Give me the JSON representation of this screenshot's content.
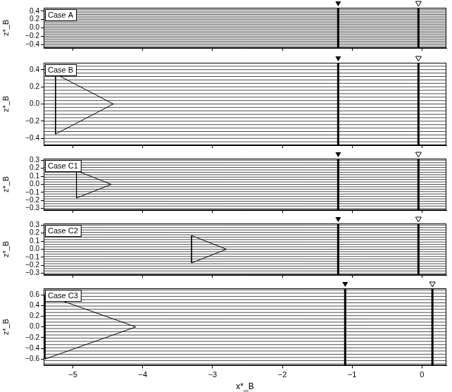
{
  "chart_data": [
    {
      "type": "scatter",
      "title": "Case A",
      "xlim": [
        -5.42,
        0.35
      ],
      "ylim": [
        -0.48,
        0.48
      ],
      "xticks": [
        {
          "value": -5,
          "label": "−5"
        },
        {
          "value": -4,
          "label": "−4"
        },
        {
          "value": -3,
          "label": "−3"
        },
        {
          "value": -2,
          "label": "−2"
        },
        {
          "value": -1,
          "label": "−1"
        },
        0
      ],
      "yticks": [
        {
          "value": -0.4,
          "label": "−0.4"
        },
        {
          "value": -0.2,
          "label": "−0.2"
        },
        {
          "value": 0,
          "label": "0.0"
        },
        {
          "value": 0.2,
          "label": "0.2"
        },
        {
          "value": 0.4,
          "label": "0.4"
        }
      ],
      "ylabel": "z*_B",
      "tick_labels": "y",
      "streamlines_z": [
        -0.44,
        -0.4,
        -0.36,
        -0.32,
        -0.28,
        -0.24,
        -0.2,
        -0.16,
        -0.12,
        -0.08,
        -0.04,
        0,
        0.04,
        0.08,
        0.12,
        0.16,
        0.2,
        0.24,
        0.28,
        0.32,
        0.36,
        0.4,
        0.44
      ],
      "shocks": [
        -1.2,
        -0.05
      ]
    },
    {
      "type": "scatter",
      "title": "Case B",
      "xlim": [
        -5.42,
        0.35
      ],
      "ylim": [
        -0.48,
        0.48
      ],
      "xticks": [
        {
          "value": -5,
          "label": "−5"
        },
        {
          "value": -4,
          "label": "−4"
        },
        {
          "value": -3,
          "label": "−3"
        },
        {
          "value": -2,
          "label": "−2"
        },
        {
          "value": -1,
          "label": "−1"
        },
        0
      ],
      "yticks": [
        {
          "value": -0.4,
          "label": "−0.4"
        },
        {
          "value": -0.2,
          "label": "−0.2"
        },
        {
          "value": 0,
          "label": "0.0"
        },
        {
          "value": 0.2,
          "label": "0.2"
        },
        {
          "value": 0.4,
          "label": "0.4"
        }
      ],
      "ylabel": "z*_B",
      "tick_labels": "y",
      "streamlines_z": [
        -0.44,
        -0.4,
        -0.36,
        -0.32,
        -0.28,
        -0.24,
        -0.2,
        -0.16,
        -0.12,
        -0.08,
        -0.04,
        0,
        0.04,
        0.08,
        0.12,
        0.16,
        0.2,
        0.24,
        0.28,
        0.32,
        0.36,
        0.4,
        0.44
      ],
      "triangle": [
        [
          -5.25,
          -0.35
        ],
        [
          -4.42,
          0
        ],
        [
          -5.25,
          0.35
        ]
      ],
      "shocks": [
        -1.2,
        -0.05
      ]
    },
    {
      "type": "scatter",
      "title": "Case C1",
      "xlim": [
        -5.42,
        0.35
      ],
      "ylim": [
        -0.32,
        0.32
      ],
      "xticks": [
        {
          "value": -5,
          "label": "−5"
        },
        {
          "value": -4,
          "label": "−4"
        },
        {
          "value": -3,
          "label": "−3"
        },
        {
          "value": -2,
          "label": "−2"
        },
        {
          "value": -1,
          "label": "−1"
        },
        0
      ],
      "yticks": [
        {
          "value": -0.3,
          "label": "−0.3"
        },
        {
          "value": -0.2,
          "label": "−0.2"
        },
        {
          "value": -0.1,
          "label": "−0.1"
        },
        {
          "value": 0,
          "label": "0.0"
        },
        {
          "value": 0.1,
          "label": "0.1"
        },
        {
          "value": 0.2,
          "label": "0.2"
        },
        {
          "value": 0.3,
          "label": "0.3"
        }
      ],
      "ylabel": "z*_B",
      "tick_labels": "y",
      "streamlines_z": [
        -0.3,
        -0.27,
        -0.24,
        -0.21,
        -0.18,
        -0.15,
        -0.12,
        -0.09,
        -0.06,
        -0.03,
        0,
        0.03,
        0.06,
        0.09,
        0.12,
        0.15,
        0.18,
        0.21,
        0.24,
        0.27,
        0.3
      ],
      "triangle": [
        [
          -4.95,
          -0.17
        ],
        [
          -4.45,
          0
        ],
        [
          -4.95,
          0.17
        ]
      ],
      "shocks": [
        -1.2,
        -0.05
      ]
    },
    {
      "type": "scatter",
      "title": "Case C2",
      "xlim": [
        -5.42,
        0.35
      ],
      "ylim": [
        -0.32,
        0.32
      ],
      "xticks": [
        {
          "value": -5,
          "label": "−5"
        },
        {
          "value": -4,
          "label": "−4"
        },
        {
          "value": -3,
          "label": "−3"
        },
        {
          "value": -2,
          "label": "−2"
        },
        {
          "value": -1,
          "label": "−1"
        },
        0
      ],
      "yticks": [
        {
          "value": -0.3,
          "label": "−0.3"
        },
        {
          "value": -0.2,
          "label": "−0.2"
        },
        {
          "value": -0.1,
          "label": "−0.1"
        },
        {
          "value": 0,
          "label": "0.0"
        },
        {
          "value": 0.1,
          "label": "0.1"
        },
        {
          "value": 0.2,
          "label": "0.2"
        },
        {
          "value": 0.3,
          "label": "0.3"
        }
      ],
      "ylabel": "z*_B",
      "tick_labels": "y",
      "streamlines_z": [
        -0.3,
        -0.27,
        -0.24,
        -0.21,
        -0.18,
        -0.15,
        -0.12,
        -0.09,
        -0.06,
        -0.03,
        0,
        0.03,
        0.06,
        0.09,
        0.12,
        0.15,
        0.18,
        0.21,
        0.24,
        0.27,
        0.3
      ],
      "triangle": [
        [
          -3.3,
          -0.17
        ],
        [
          -2.8,
          0
        ],
        [
          -3.3,
          0.17
        ]
      ],
      "shocks": [
        -1.2,
        -0.05
      ]
    },
    {
      "type": "scatter",
      "title": "Case C3",
      "xlim": [
        -5.42,
        0.35
      ],
      "ylim": [
        -0.72,
        0.72
      ],
      "xticks": [
        {
          "value": -5,
          "label": "−5"
        },
        {
          "value": -4,
          "label": "−4"
        },
        {
          "value": -3,
          "label": "−3"
        },
        {
          "value": -2,
          "label": "−2"
        },
        {
          "value": -1,
          "label": "−1"
        },
        0
      ],
      "yticks": [
        {
          "value": -0.6,
          "label": "−0.6"
        },
        {
          "value": -0.4,
          "label": "−0.4"
        },
        {
          "value": -0.2,
          "label": "−0.2"
        },
        {
          "value": 0,
          "label": "0.0"
        },
        {
          "value": 0.2,
          "label": "0.2"
        },
        {
          "value": 0.4,
          "label": "0.4"
        },
        {
          "value": 0.6,
          "label": "0.6"
        }
      ],
      "xlabel": "x*_B",
      "ylabel": "z*_B",
      "streamlines_z": [
        -0.69,
        -0.63,
        -0.57,
        -0.51,
        -0.45,
        -0.39,
        -0.33,
        -0.27,
        -0.21,
        -0.15,
        -0.09,
        -0.03,
        0.03,
        0.09,
        0.15,
        0.21,
        0.27,
        0.33,
        0.39,
        0.45,
        0.51,
        0.57,
        0.63,
        0.69
      ],
      "triangle": [
        [
          -5.4,
          -0.6
        ],
        [
          -4.1,
          0
        ],
        [
          -5.4,
          0.6
        ]
      ],
      "shocks": [
        -1.1,
        0.15
      ]
    }
  ]
}
